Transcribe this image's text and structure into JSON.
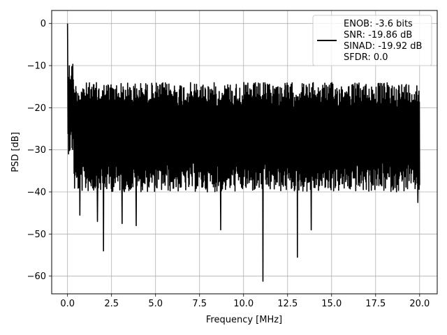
{
  "chart_data": {
    "type": "line",
    "title": "",
    "xlabel": "Frequency [MHz]",
    "ylabel": "PSD [dB]",
    "xlim": [
      -0.9,
      21.0
    ],
    "ylim": [
      -64.2,
      3.1
    ],
    "xticks": [
      0.0,
      2.5,
      5.0,
      7.5,
      10.0,
      12.5,
      15.0,
      17.5,
      20.0
    ],
    "xtick_labels": [
      "0.0",
      "2.5",
      "5.0",
      "7.5",
      "10.0",
      "12.5",
      "15.0",
      "17.5",
      "20.0"
    ],
    "yticks": [
      0,
      -10,
      -20,
      -30,
      -40,
      -50,
      -60
    ],
    "ytick_labels": [
      "0",
      "−10",
      "−20",
      "−30",
      "−40",
      "−50",
      "−60"
    ],
    "grid": true,
    "legend_placement": "top-right",
    "legend_lines": [
      "ENOB: -3.6 bits",
      "SNR: -19.86 dB",
      "SINAD: -19.92 dB",
      "SFDR: 0.0"
    ],
    "series": [
      {
        "color": "#000000",
        "x_range": [
          0.0,
          20.0
        ],
        "description_of_shape": "dense noise floor",
        "peak": {
          "x": 0.0,
          "y": 0.0
        },
        "envelope": {
          "upper": [
            -10,
            -14
          ],
          "lower": [
            -25,
            -40
          ]
        },
        "notable_minima": [
          {
            "x": 0.7,
            "y": -45.5
          },
          {
            "x": 1.7,
            "y": -47.0
          },
          {
            "x": 2.05,
            "y": -54.0
          },
          {
            "x": 3.1,
            "y": -47.5
          },
          {
            "x": 3.9,
            "y": -48.0
          },
          {
            "x": 8.7,
            "y": -49.0
          },
          {
            "x": 11.1,
            "y": -61.2
          },
          {
            "x": 13.05,
            "y": -55.5
          },
          {
            "x": 13.85,
            "y": -49.0
          },
          {
            "x": 19.9,
            "y": -42.5
          }
        ]
      }
    ]
  }
}
